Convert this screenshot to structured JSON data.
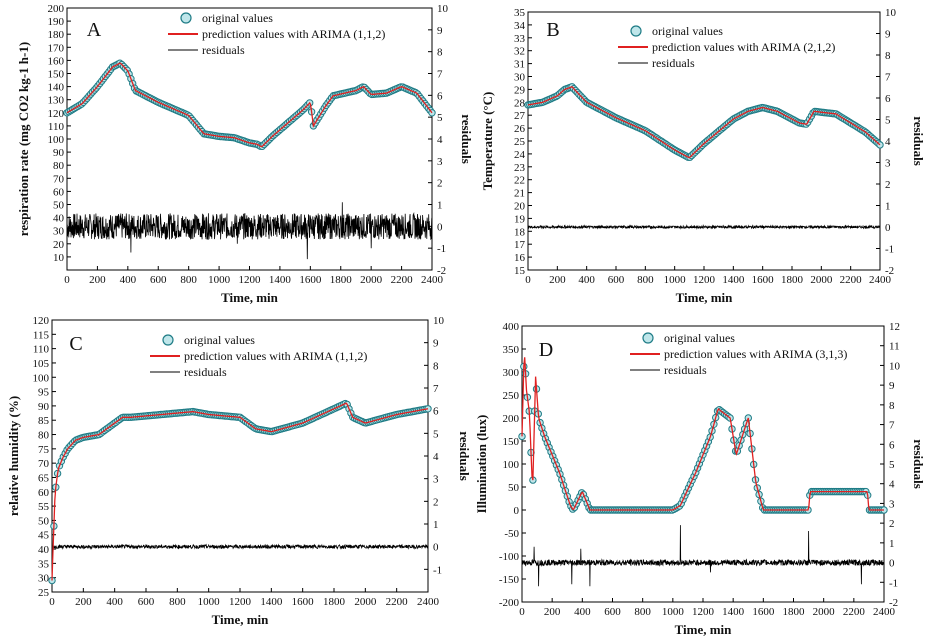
{
  "chart_data": [
    {
      "panel": "A",
      "type": "line",
      "xlabel": "Time, min",
      "ylabel": "respiration rate (mg CO2 kg-1 h-1)",
      "y2label": "residuals",
      "xlim": [
        0,
        2400
      ],
      "ylim": [
        0,
        200
      ],
      "y2lim": [
        -2,
        10
      ],
      "xticks": [
        0,
        200,
        400,
        600,
        800,
        1000,
        1200,
        1400,
        1600,
        1800,
        2000,
        2200,
        2400
      ],
      "yticks": [
        10,
        20,
        30,
        40,
        50,
        60,
        70,
        80,
        90,
        100,
        110,
        120,
        130,
        140,
        150,
        160,
        170,
        180,
        190,
        200
      ],
      "y2ticks": [
        -2,
        -1,
        0,
        1,
        2,
        3,
        4,
        5,
        6,
        7,
        8,
        9,
        10
      ],
      "legend": [
        "original values",
        "prediction values with ARIMA (1,1,2)",
        "residuals"
      ],
      "legend_position": "top-center",
      "series": [
        {
          "name": "original values",
          "x": [
            0,
            100,
            200,
            300,
            350,
            400,
            450,
            600,
            800,
            900,
            1000,
            1100,
            1200,
            1250,
            1280,
            1350,
            1450,
            1550,
            1600,
            1620,
            1700,
            1750,
            1900,
            1950,
            2000,
            2100,
            2200,
            2300,
            2400
          ],
          "y": [
            120,
            127,
            140,
            155,
            158,
            152,
            137,
            128,
            118,
            104,
            102,
            101,
            97,
            96,
            94,
            102,
            112,
            122,
            128,
            110,
            125,
            133,
            137,
            140,
            134,
            135,
            140,
            135,
            120
          ]
        },
        {
          "name": "residuals",
          "amplitude": 0.6,
          "spikes": [
            {
              "x": 420,
              "y": -1.2
            },
            {
              "x": 1120,
              "y": -0.8
            },
            {
              "x": 1580,
              "y": -1.5
            },
            {
              "x": 1810,
              "y": 1.1
            },
            {
              "x": 2000,
              "y": -1.0
            }
          ]
        }
      ]
    },
    {
      "panel": "B",
      "type": "line",
      "xlabel": "Time, min",
      "ylabel": "Temperature (°C)",
      "y2label": "residuals",
      "xlim": [
        0,
        2400
      ],
      "ylim": [
        15,
        35
      ],
      "y2lim": [
        -2,
        10
      ],
      "xticks": [
        0,
        200,
        400,
        600,
        800,
        1000,
        1200,
        1400,
        1600,
        1800,
        2000,
        2200,
        2400
      ],
      "yticks": [
        15,
        16,
        17,
        18,
        19,
        20,
        21,
        22,
        23,
        24,
        25,
        26,
        27,
        28,
        29,
        30,
        31,
        32,
        33,
        34,
        35
      ],
      "y2ticks": [
        -2,
        -1,
        0,
        1,
        2,
        3,
        4,
        5,
        6,
        7,
        8,
        9,
        10
      ],
      "legend": [
        "original values",
        "prediction values with ARIMA (2,1,2)",
        "residuals"
      ],
      "legend_position": "top-center",
      "series": [
        {
          "name": "original values",
          "x": [
            0,
            100,
            200,
            250,
            300,
            400,
            600,
            800,
            1000,
            1100,
            1200,
            1400,
            1500,
            1600,
            1700,
            1800,
            1850,
            1900,
            1950,
            2100,
            2200,
            2300,
            2400
          ],
          "y": [
            27.8,
            28.0,
            28.5,
            29.0,
            29.2,
            28.0,
            26.8,
            25.8,
            24.3,
            23.7,
            24.8,
            26.7,
            27.3,
            27.6,
            27.3,
            26.7,
            26.4,
            26.3,
            27.3,
            27.1,
            26.4,
            25.7,
            24.7
          ]
        },
        {
          "name": "residuals",
          "amplitude": 0.06,
          "spikes": []
        }
      ]
    },
    {
      "panel": "C",
      "type": "line",
      "xlabel": "Time, min",
      "ylabel": "relative humidity (%)",
      "y2label": "residuals",
      "xlim": [
        0,
        2400
      ],
      "ylim": [
        25,
        120
      ],
      "y2lim": [
        -2,
        10
      ],
      "xticks": [
        0,
        200,
        400,
        600,
        800,
        1000,
        1200,
        1400,
        1600,
        1800,
        2000,
        2200,
        2400
      ],
      "yticks": [
        25,
        30,
        35,
        40,
        45,
        50,
        55,
        60,
        65,
        70,
        75,
        80,
        85,
        90,
        95,
        100,
        105,
        110,
        115,
        120
      ],
      "y2ticks": [
        -1,
        0,
        1,
        2,
        3,
        4,
        5,
        6,
        7,
        8,
        9,
        10
      ],
      "legend": [
        "original values",
        "prediction values with ARIMA (1,1,2)",
        "residuals"
      ],
      "legend_position": "top-center",
      "series": [
        {
          "name": "original values",
          "x": [
            0,
            10,
            20,
            40,
            70,
            100,
            150,
            200,
            300,
            400,
            450,
            500,
            700,
            900,
            1000,
            1200,
            1300,
            1400,
            1600,
            1800,
            1880,
            1920,
            2000,
            2200,
            2400
          ],
          "y": [
            29,
            45,
            60,
            68,
            72,
            75,
            78,
            79,
            80,
            84,
            86,
            86,
            87,
            88,
            87,
            86,
            82,
            81,
            84,
            89,
            91,
            86,
            84,
            87,
            89
          ]
        },
        {
          "name": "residuals",
          "amplitude": 0.08,
          "spikes": []
        }
      ]
    },
    {
      "panel": "D",
      "type": "line",
      "xlabel": "Time, min",
      "ylabel": "Illumination (lux)",
      "y2label": "residuals",
      "xlim": [
        0,
        2400
      ],
      "ylim": [
        -200,
        400
      ],
      "y2lim": [
        -2,
        12
      ],
      "xticks": [
        0,
        200,
        400,
        600,
        800,
        1000,
        1200,
        1400,
        1600,
        1800,
        2000,
        2200,
        2400
      ],
      "yticks": [
        -200,
        -150,
        -100,
        -50,
        0,
        50,
        100,
        150,
        200,
        250,
        300,
        350,
        400
      ],
      "y2ticks": [
        -2,
        -1,
        0,
        1,
        2,
        3,
        4,
        5,
        6,
        7,
        8,
        9,
        10,
        11,
        12
      ],
      "legend": [
        "original values",
        "prediction values with ARIMA (3,1,3)",
        "residuals"
      ],
      "legend_position": "top-center",
      "series": [
        {
          "name": "original values",
          "x": [
            0,
            15,
            30,
            50,
            70,
            90,
            110,
            150,
            250,
            320,
            340,
            400,
            450,
            500,
            1000,
            1050,
            1150,
            1250,
            1300,
            1380,
            1420,
            1500,
            1550,
            1600,
            1900,
            1910,
            2200,
            2290,
            2300,
            2400
          ],
          "y": [
            160,
            350,
            260,
            210,
            40,
            290,
            200,
            160,
            80,
            10,
            0,
            40,
            0,
            0,
            0,
            10,
            80,
            160,
            220,
            200,
            120,
            200,
            60,
            0,
            0,
            40,
            40,
            40,
            0,
            0
          ]
        },
        {
          "name": "residuals",
          "amplitude": 0.15,
          "spikes": [
            {
              "x": 80,
              "y": 0.8
            },
            {
              "x": 110,
              "y": -1.2
            },
            {
              "x": 330,
              "y": -1.1
            },
            {
              "x": 390,
              "y": 0.7
            },
            {
              "x": 450,
              "y": -1.2
            },
            {
              "x": 1050,
              "y": 1.9
            },
            {
              "x": 1250,
              "y": -0.5
            },
            {
              "x": 1900,
              "y": 1.6
            },
            {
              "x": 2250,
              "y": -1.1
            }
          ]
        }
      ]
    }
  ]
}
